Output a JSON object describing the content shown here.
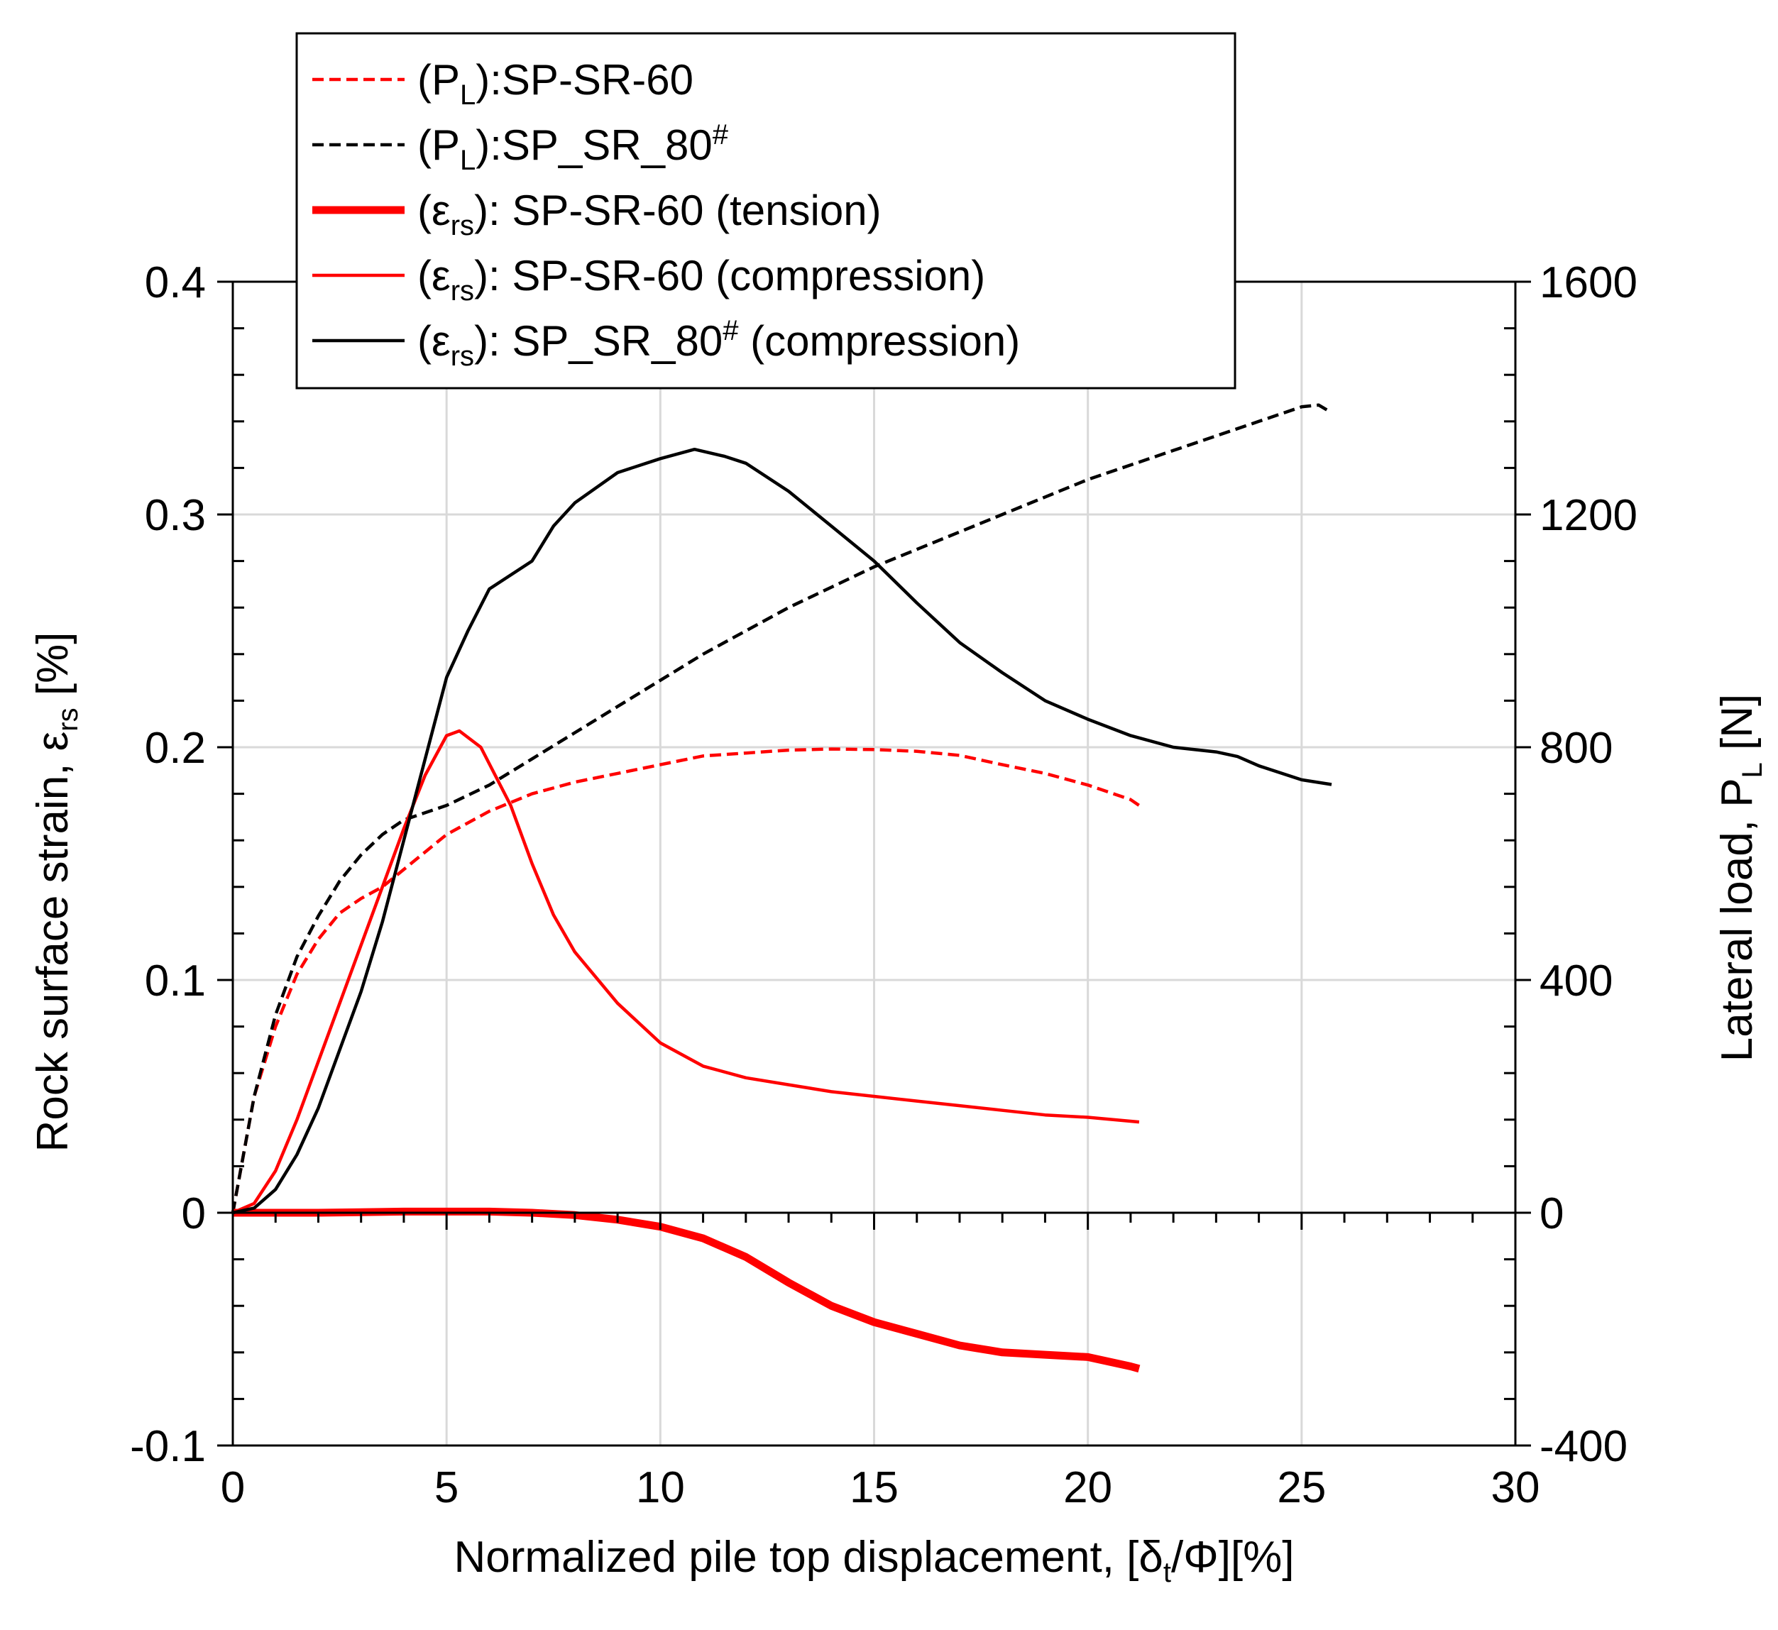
{
  "chart_data": {
    "type": "line",
    "x": {
      "label_parts": [
        "Normalized pile top displacement, [δ",
        "t",
        "/Φ][%]"
      ],
      "lim": [
        0,
        30
      ],
      "ticks": [
        0,
        5,
        10,
        15,
        20,
        25,
        30
      ],
      "minor_step": 1
    },
    "y_left": {
      "label_parts": [
        "Rock surface strain, ε",
        "rs",
        " [%]"
      ],
      "lim": [
        -0.1,
        0.4
      ],
      "ticks": [
        -0.1,
        0,
        0.1,
        0.2,
        0.3,
        0.4
      ],
      "tick_labels": [
        "-0.1",
        "0",
        "0.1",
        "0.2",
        "0.3",
        "0.4"
      ],
      "minor_step": 0.02
    },
    "y_right": {
      "label_parts": [
        "Lateral load, P",
        "L",
        " [N]"
      ],
      "lim": [
        -400,
        1600
      ],
      "ticks": [
        -400,
        0,
        400,
        800,
        1200,
        1600
      ],
      "tick_labels": [
        "-400",
        "0",
        "400",
        "800",
        "1200",
        "1600"
      ],
      "minor_step": 80
    },
    "grid": true,
    "legend_position": "top-left",
    "series": [
      {
        "name": "(PL):SP-SR-60",
        "legend": {
          "pre": "(P",
          "sub": "L",
          "mid": "):SP-SR-60",
          "sup": "",
          "post": ""
        },
        "axis": "right",
        "color": "#ff0000",
        "style": "dashed",
        "weight": "normal",
        "points": [
          [
            0,
            0
          ],
          [
            0.5,
            200
          ],
          [
            1,
            320
          ],
          [
            1.5,
            410
          ],
          [
            2,
            470
          ],
          [
            2.5,
            515
          ],
          [
            3,
            540
          ],
          [
            3.5,
            560
          ],
          [
            4,
            590
          ],
          [
            5,
            650
          ],
          [
            6,
            690
          ],
          [
            7,
            720
          ],
          [
            8,
            740
          ],
          [
            9,
            755
          ],
          [
            10,
            770
          ],
          [
            11,
            785
          ],
          [
            12,
            790
          ],
          [
            13,
            795
          ],
          [
            14,
            797
          ],
          [
            15,
            796
          ],
          [
            16,
            793
          ],
          [
            17,
            786
          ],
          [
            18,
            770
          ],
          [
            19,
            755
          ],
          [
            20,
            735
          ],
          [
            21,
            710
          ],
          [
            21.2,
            700
          ]
        ]
      },
      {
        "name": "(PL):SP_SR_80#",
        "legend": {
          "pre": "(P",
          "sub": "L",
          "mid": "):SP_SR_80",
          "sup": "#",
          "post": ""
        },
        "axis": "right",
        "color": "#000000",
        "style": "dashed",
        "weight": "normal",
        "points": [
          [
            0,
            0
          ],
          [
            0.5,
            200
          ],
          [
            1,
            340
          ],
          [
            1.5,
            440
          ],
          [
            2,
            510
          ],
          [
            2.5,
            570
          ],
          [
            3,
            615
          ],
          [
            3.5,
            650
          ],
          [
            4,
            675
          ],
          [
            5,
            700
          ],
          [
            6,
            735
          ],
          [
            7,
            780
          ],
          [
            8,
            825
          ],
          [
            9,
            870
          ],
          [
            10,
            915
          ],
          [
            11,
            960
          ],
          [
            12,
            1000
          ],
          [
            13,
            1040
          ],
          [
            14,
            1075
          ],
          [
            15,
            1110
          ],
          [
            16,
            1140
          ],
          [
            17,
            1170
          ],
          [
            18,
            1200
          ],
          [
            19,
            1230
          ],
          [
            20,
            1260
          ],
          [
            21,
            1285
          ],
          [
            22,
            1310
          ],
          [
            23,
            1335
          ],
          [
            24,
            1360
          ],
          [
            25,
            1385
          ],
          [
            25.4,
            1388
          ],
          [
            25.7,
            1375
          ]
        ]
      },
      {
        "name": "(εrs): SP-SR-60 (tension)",
        "legend": {
          "pre": "(ε",
          "sub": "rs",
          "mid": "): SP-SR-60 (tension)",
          "sup": "",
          "post": ""
        },
        "axis": "left",
        "color": "#ff0000",
        "style": "solid",
        "weight": "thick",
        "points": [
          [
            0,
            0
          ],
          [
            2,
            0
          ],
          [
            4,
            0.0005
          ],
          [
            6,
            0.0005
          ],
          [
            7,
            0.0
          ],
          [
            8,
            -0.001
          ],
          [
            9,
            -0.003
          ],
          [
            10,
            -0.006
          ],
          [
            11,
            -0.011
          ],
          [
            12,
            -0.019
          ],
          [
            13,
            -0.03
          ],
          [
            14,
            -0.04
          ],
          [
            15,
            -0.047
          ],
          [
            16,
            -0.052
          ],
          [
            17,
            -0.057
          ],
          [
            18,
            -0.06
          ],
          [
            19,
            -0.061
          ],
          [
            20,
            -0.062
          ],
          [
            21,
            -0.066
          ],
          [
            21.2,
            -0.067
          ]
        ]
      },
      {
        "name": "(εrs): SP-SR-60 (compression)",
        "legend": {
          "pre": "(ε",
          "sub": "rs",
          "mid": "): SP-SR-60 (compression)",
          "sup": "",
          "post": ""
        },
        "axis": "left",
        "color": "#ff0000",
        "style": "solid",
        "weight": "normal",
        "points": [
          [
            0,
            0
          ],
          [
            0.5,
            0.004
          ],
          [
            1,
            0.018
          ],
          [
            1.5,
            0.04
          ],
          [
            2,
            0.065
          ],
          [
            2.5,
            0.09
          ],
          [
            3,
            0.115
          ],
          [
            3.5,
            0.14
          ],
          [
            4,
            0.165
          ],
          [
            4.5,
            0.188
          ],
          [
            5,
            0.205
          ],
          [
            5.3,
            0.207
          ],
          [
            5.8,
            0.2
          ],
          [
            6.5,
            0.175
          ],
          [
            7,
            0.15
          ],
          [
            7.5,
            0.128
          ],
          [
            8,
            0.112
          ],
          [
            9,
            0.09
          ],
          [
            10,
            0.073
          ],
          [
            11,
            0.063
          ],
          [
            12,
            0.058
          ],
          [
            13,
            0.055
          ],
          [
            14,
            0.052
          ],
          [
            15,
            0.05
          ],
          [
            16,
            0.048
          ],
          [
            17,
            0.046
          ],
          [
            18,
            0.044
          ],
          [
            19,
            0.042
          ],
          [
            20,
            0.041
          ],
          [
            21.2,
            0.039
          ]
        ]
      },
      {
        "name": "(εrs): SP_SR_80# (compression)",
        "legend": {
          "pre": "(ε",
          "sub": "rs",
          "mid": "): SP_SR_80",
          "sup": "#",
          "post": " (compression)"
        },
        "axis": "left",
        "color": "#000000",
        "style": "solid",
        "weight": "normal",
        "points": [
          [
            0,
            0
          ],
          [
            0.5,
            0.002
          ],
          [
            1,
            0.01
          ],
          [
            1.5,
            0.025
          ],
          [
            2,
            0.045
          ],
          [
            2.5,
            0.07
          ],
          [
            3,
            0.095
          ],
          [
            3.5,
            0.125
          ],
          [
            4,
            0.16
          ],
          [
            4.5,
            0.195
          ],
          [
            5,
            0.23
          ],
          [
            5.5,
            0.25
          ],
          [
            6,
            0.268
          ],
          [
            7,
            0.28
          ],
          [
            7.5,
            0.295
          ],
          [
            8,
            0.305
          ],
          [
            9,
            0.318
          ],
          [
            10,
            0.324
          ],
          [
            10.8,
            0.328
          ],
          [
            11.5,
            0.325
          ],
          [
            12,
            0.322
          ],
          [
            13,
            0.31
          ],
          [
            14,
            0.295
          ],
          [
            15,
            0.28
          ],
          [
            16,
            0.262
          ],
          [
            17,
            0.245
          ],
          [
            18,
            0.232
          ],
          [
            19,
            0.22
          ],
          [
            20,
            0.212
          ],
          [
            21,
            0.205
          ],
          [
            22,
            0.2
          ],
          [
            23,
            0.198
          ],
          [
            23.5,
            0.196
          ],
          [
            24,
            0.192
          ],
          [
            25,
            0.186
          ],
          [
            25.7,
            0.184
          ]
        ]
      }
    ]
  }
}
